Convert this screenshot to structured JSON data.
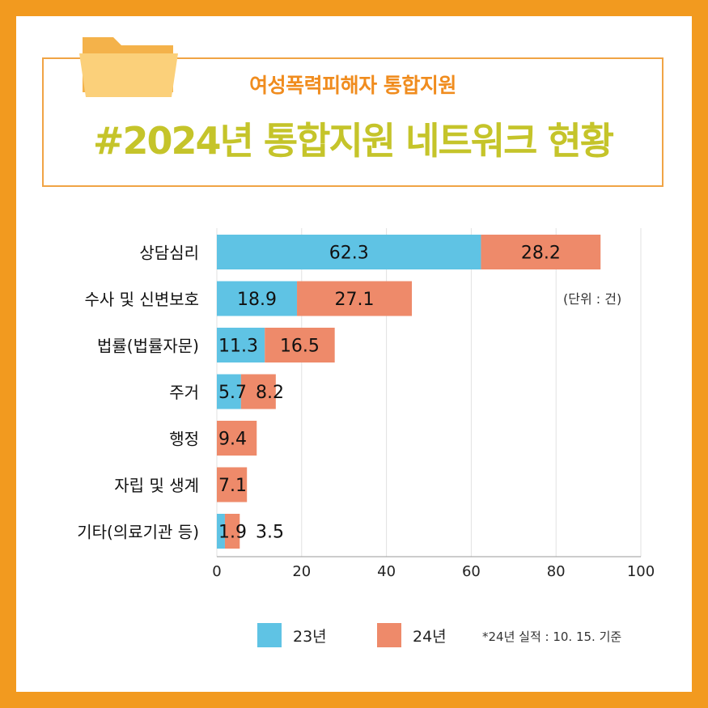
{
  "header": {
    "subtitle": "여성폭력피해자 통합지원",
    "title": "#2024년 통합지원 네트워크 현황"
  },
  "colors": {
    "frame": "#F29A1F",
    "title_border": "#F0A445",
    "subtitle": "#F08C1E",
    "title": "#C5C42A",
    "series_23": "#5FC3E4",
    "series_24": "#EE8A6A"
  },
  "icons": {
    "folder": "folder-icon"
  },
  "unit_label": "(단위 : 건)",
  "legend": {
    "items": [
      {
        "label": "23년",
        "color": "#5FC3E4"
      },
      {
        "label": "24년",
        "color": "#EE8A6A"
      }
    ],
    "note": "*24년 실적 : 10. 15. 기준"
  },
  "chart_data": {
    "type": "bar",
    "orientation": "horizontal",
    "stacked": true,
    "categories": [
      "상담심리",
      "수사 및 신변보호",
      "법률(법률자문)",
      "주거",
      "행정",
      "자립 및 생계",
      "기타(의료기관 등)"
    ],
    "series": [
      {
        "name": "23년",
        "values": [
          62.3,
          18.9,
          11.3,
          5.7,
          null,
          null,
          1.9
        ],
        "color": "#5FC3E4"
      },
      {
        "name": "24년",
        "values": [
          28.2,
          27.1,
          16.5,
          8.2,
          9.4,
          7.1,
          3.5
        ],
        "color": "#EE8A6A"
      }
    ],
    "xlim": [
      0,
      100
    ],
    "xticks": [
      0,
      20,
      40,
      60,
      80,
      100
    ],
    "grid": true,
    "legend_position": "bottom"
  }
}
